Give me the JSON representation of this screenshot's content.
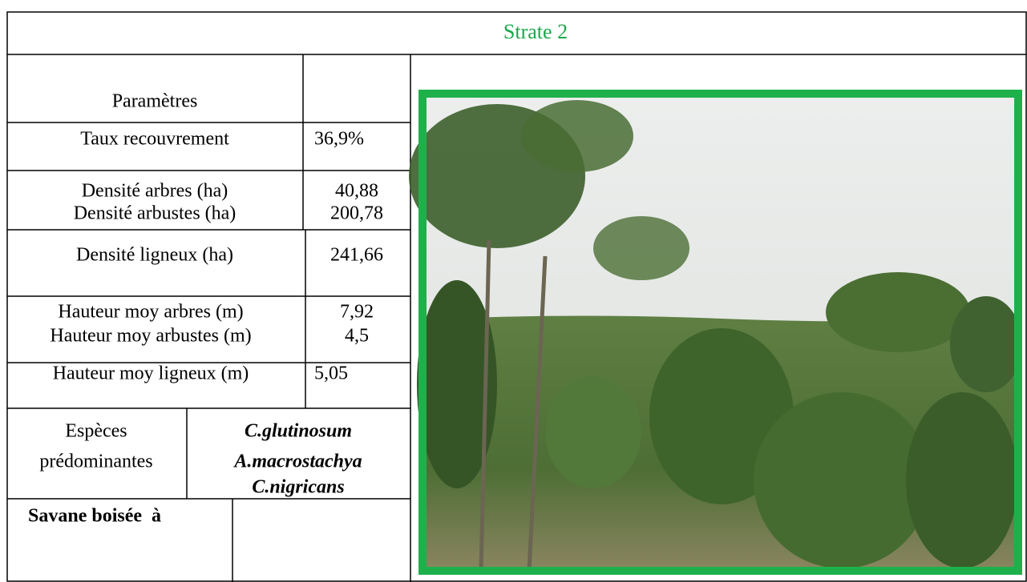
{
  "title": "Strate 2",
  "table": {
    "header": "Paramètres",
    "rows": [
      {
        "labels": [
          "Taux recouvrement"
        ],
        "values": [
          "36,9%"
        ]
      },
      {
        "labels": [
          "Densité arbres (ha)",
          "Densité arbustes (ha)"
        ],
        "values": [
          "40,88",
          "200,78"
        ]
      },
      {
        "labels": [
          "Densité ligneux (ha)"
        ],
        "values": [
          "241,66"
        ]
      },
      {
        "labels": [
          "Hauteur moy arbres (m)",
          "Hauteur moy arbustes (m)"
        ],
        "values": [
          "7,92",
          "4,5"
        ]
      },
      {
        "labels": [
          "Hauteur moy ligneux (m)"
        ],
        "values": [
          "5,05"
        ]
      }
    ]
  },
  "species": {
    "label": [
      "Espèces",
      "prédominantes"
    ],
    "names": [
      "C.glutinosum",
      "A.macrostachya",
      "C.nigricans"
    ]
  },
  "footer": "Savane boisée  à"
}
